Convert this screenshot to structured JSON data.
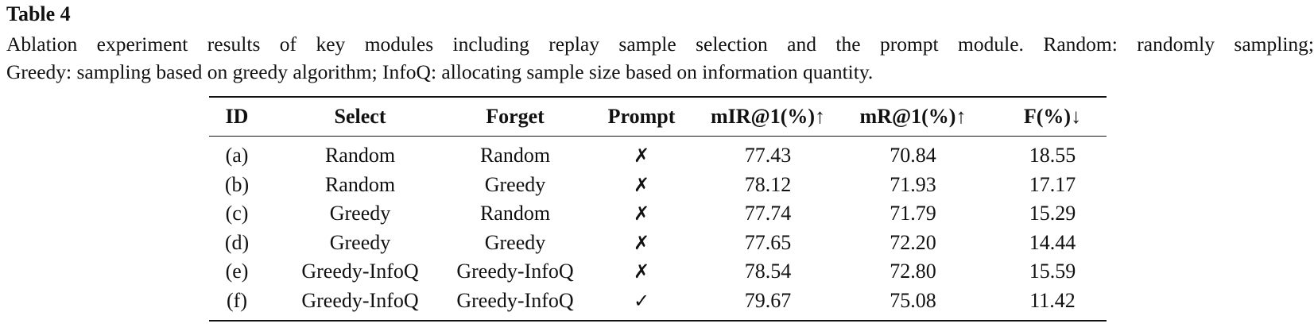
{
  "caption": {
    "title": "Table 4",
    "line1": "Ablation experiment results of key modules including replay sample selection and the prompt module. Random: randomly sampling;",
    "line2": "Greedy: sampling based on greedy algorithm; InfoQ: allocating sample size based on information quantity."
  },
  "table": {
    "headers": [
      "ID",
      "Select",
      "Forget",
      "Prompt",
      "mIR@1(%)↑",
      "mR@1(%)↑",
      "F(%)↓"
    ],
    "rows": [
      [
        "(a)",
        "Random",
        "Random",
        "✗",
        "77.43",
        "70.84",
        "18.55"
      ],
      [
        "(b)",
        "Random",
        "Greedy",
        "✗",
        "78.12",
        "71.93",
        "17.17"
      ],
      [
        "(c)",
        "Greedy",
        "Random",
        "✗",
        "77.74",
        "71.79",
        "15.29"
      ],
      [
        "(d)",
        "Greedy",
        "Greedy",
        "✗",
        "77.65",
        "72.20",
        "14.44"
      ],
      [
        "(e)",
        "Greedy-InfoQ",
        "Greedy-InfoQ",
        "✗",
        "78.54",
        "72.80",
        "15.59"
      ],
      [
        "(f)",
        "Greedy-InfoQ",
        "Greedy-InfoQ",
        "✓",
        "79.67",
        "75.08",
        "11.42"
      ]
    ]
  }
}
